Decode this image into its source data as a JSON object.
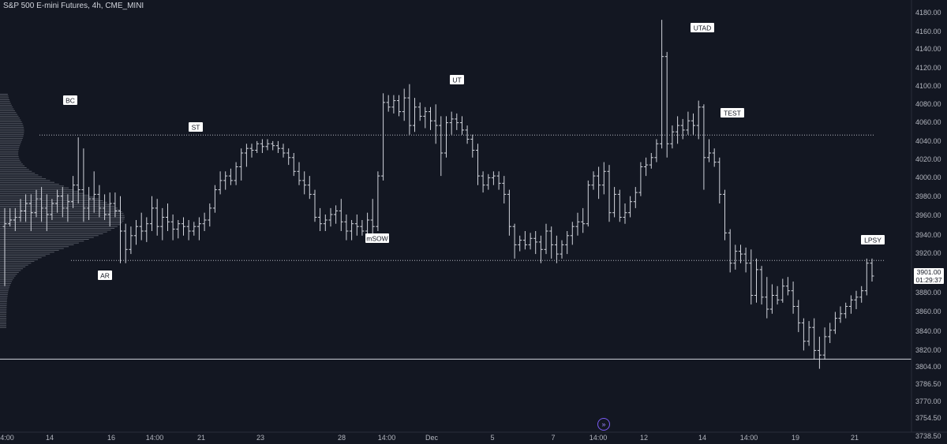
{
  "header": {
    "title": "S&P 500 E-mini Futures, 4h, CME_MINI"
  },
  "last_price": {
    "value": "3901.00",
    "countdown": "01:29:37"
  },
  "colors": {
    "background": "#131722",
    "bars": "#d1d4dc",
    "axis_text": "#b2b5be",
    "lines": "#d1d4dc",
    "profile": "#8d929c",
    "label_bg": "#ffffff",
    "label_text": "#131722",
    "accent": "#7b5cf5"
  },
  "icons": {
    "nav": "double-chevron-right-icon"
  },
  "chart_data": {
    "type": "ohlc",
    "title": "S&P 500 E-mini Futures, 4h, CME_MINI",
    "y_ticks": [
      "4180.00",
      "4160.00",
      "4140.00",
      "4120.00",
      "4100.00",
      "4080.00",
      "4060.00",
      "4040.00",
      "4020.00",
      "4000.00",
      "3980.00",
      "3960.00",
      "3940.00",
      "3920.00",
      "3880.00",
      "3860.00",
      "3840.00",
      "3820.00",
      "3804.00",
      "3786.50",
      "3770.00",
      "3754.50",
      "3738.50"
    ],
    "x_ticks": [
      "4:00",
      "14",
      "16",
      "14:00",
      "21",
      "23",
      "28",
      "14:00",
      "Dec",
      "5",
      "7",
      "14:00",
      "12",
      "14",
      "14:00",
      "19",
      "21"
    ],
    "ylim": [
      3731,
      4193
    ],
    "horizontal_levels": [
      {
        "value": 4054.5,
        "style": "dotted"
      },
      {
        "value": 3918,
        "style": "dotted"
      },
      {
        "value": 3810.5,
        "style": "solid"
      }
    ],
    "annotations": [
      {
        "text": "BC",
        "near": 4085
      },
      {
        "text": "ST",
        "near": 4054.5
      },
      {
        "text": "AR",
        "near": 3894
      },
      {
        "text": "UT",
        "near": 4106
      },
      {
        "text": "mSOW",
        "near": 3937
      },
      {
        "text": "UTAD",
        "near": 4168
      },
      {
        "text": "TEST",
        "near": 4067
      },
      {
        "text": "LPSY",
        "near": 3937
      }
    ],
    "bars": [
      {
        "o": 3955,
        "h": 3975,
        "l": 3890,
        "c": 3958
      },
      {
        "o": 3958,
        "h": 3975,
        "l": 3955,
        "c": 3962
      },
      {
        "o": 3962,
        "h": 3975,
        "l": 3950,
        "c": 3965
      },
      {
        "o": 3965,
        "h": 3985,
        "l": 3960,
        "c": 3972
      },
      {
        "o": 3972,
        "h": 3990,
        "l": 3960,
        "c": 3980
      },
      {
        "o": 3980,
        "h": 3990,
        "l": 3950,
        "c": 3970
      },
      {
        "o": 3970,
        "h": 3995,
        "l": 3965,
        "c": 3985
      },
      {
        "o": 3985,
        "h": 3998,
        "l": 3960,
        "c": 3975
      },
      {
        "o": 3975,
        "h": 3990,
        "l": 3950,
        "c": 3968
      },
      {
        "o": 3968,
        "h": 3985,
        "l": 3962,
        "c": 3980
      },
      {
        "o": 3980,
        "h": 3995,
        "l": 3970,
        "c": 3988
      },
      {
        "o": 3988,
        "h": 3998,
        "l": 3965,
        "c": 3975
      },
      {
        "o": 3975,
        "h": 3990,
        "l": 3960,
        "c": 3982
      },
      {
        "o": 3982,
        "h": 4010,
        "l": 3975,
        "c": 4000
      },
      {
        "o": 4000,
        "h": 4052,
        "l": 3980,
        "c": 3995
      },
      {
        "o": 3995,
        "h": 4040,
        "l": 3960,
        "c": 3975
      },
      {
        "o": 3975,
        "h": 3998,
        "l": 3962,
        "c": 3985
      },
      {
        "o": 3985,
        "h": 4015,
        "l": 3970,
        "c": 3990
      },
      {
        "o": 3990,
        "h": 4000,
        "l": 3965,
        "c": 3975
      },
      {
        "o": 3975,
        "h": 3990,
        "l": 3962,
        "c": 3968
      },
      {
        "o": 3968,
        "h": 3992,
        "l": 3955,
        "c": 3980
      },
      {
        "o": 3980,
        "h": 3992,
        "l": 3965,
        "c": 3972
      },
      {
        "o": 3972,
        "h": 3988,
        "l": 3915,
        "c": 3950
      },
      {
        "o": 3950,
        "h": 3958,
        "l": 3915,
        "c": 3930
      },
      {
        "o": 3930,
        "h": 3955,
        "l": 3925,
        "c": 3945
      },
      {
        "o": 3945,
        "h": 3962,
        "l": 3935,
        "c": 3955
      },
      {
        "o": 3955,
        "h": 3970,
        "l": 3940,
        "c": 3950
      },
      {
        "o": 3950,
        "h": 3965,
        "l": 3938,
        "c": 3958
      },
      {
        "o": 3958,
        "h": 3988,
        "l": 3950,
        "c": 3975
      },
      {
        "o": 3975,
        "h": 3985,
        "l": 3945,
        "c": 3955
      },
      {
        "o": 3955,
        "h": 3975,
        "l": 3940,
        "c": 3965
      },
      {
        "o": 3965,
        "h": 3980,
        "l": 3950,
        "c": 3960
      },
      {
        "o": 3960,
        "h": 3968,
        "l": 3940,
        "c": 3952
      },
      {
        "o": 3952,
        "h": 3962,
        "l": 3942,
        "c": 3958
      },
      {
        "o": 3958,
        "h": 3965,
        "l": 3945,
        "c": 3955
      },
      {
        "o": 3955,
        "h": 3962,
        "l": 3940,
        "c": 3950
      },
      {
        "o": 3950,
        "h": 3960,
        "l": 3945,
        "c": 3955
      },
      {
        "o": 3955,
        "h": 3965,
        "l": 3940,
        "c": 3958
      },
      {
        "o": 3958,
        "h": 3970,
        "l": 3950,
        "c": 3962
      },
      {
        "o": 3962,
        "h": 3980,
        "l": 3955,
        "c": 3975
      },
      {
        "o": 3975,
        "h": 4000,
        "l": 3970,
        "c": 3995
      },
      {
        "o": 3995,
        "h": 4015,
        "l": 3990,
        "c": 4005
      },
      {
        "o": 4005,
        "h": 4015,
        "l": 3995,
        "c": 4010
      },
      {
        "o": 4010,
        "h": 4018,
        "l": 4000,
        "c": 4005
      },
      {
        "o": 4005,
        "h": 4025,
        "l": 4000,
        "c": 4020
      },
      {
        "o": 4020,
        "h": 4040,
        "l": 4005,
        "c": 4035
      },
      {
        "o": 4035,
        "h": 4045,
        "l": 4020,
        "c": 4040
      },
      {
        "o": 4040,
        "h": 4045,
        "l": 4030,
        "c": 4038
      },
      {
        "o": 4038,
        "h": 4048,
        "l": 4035,
        "c": 4045
      },
      {
        "o": 4045,
        "h": 4050,
        "l": 4035,
        "c": 4042
      },
      {
        "o": 4042,
        "h": 4050,
        "l": 4038,
        "c": 4045
      },
      {
        "o": 4045,
        "h": 4048,
        "l": 4038,
        "c": 4043
      },
      {
        "o": 4043,
        "h": 4048,
        "l": 4035,
        "c": 4040
      },
      {
        "o": 4040,
        "h": 4045,
        "l": 4030,
        "c": 4035
      },
      {
        "o": 4035,
        "h": 4040,
        "l": 4022,
        "c": 4030
      },
      {
        "o": 4030,
        "h": 4035,
        "l": 4010,
        "c": 4015
      },
      {
        "o": 4015,
        "h": 4025,
        "l": 4000,
        "c": 4005
      },
      {
        "o": 4005,
        "h": 4015,
        "l": 3990,
        "c": 4000
      },
      {
        "o": 4000,
        "h": 4010,
        "l": 3985,
        "c": 3990
      },
      {
        "o": 3990,
        "h": 3995,
        "l": 3960,
        "c": 3965
      },
      {
        "o": 3965,
        "h": 3975,
        "l": 3950,
        "c": 3958
      },
      {
        "o": 3958,
        "h": 3968,
        "l": 3950,
        "c": 3962
      },
      {
        "o": 3962,
        "h": 3975,
        "l": 3955,
        "c": 3968
      },
      {
        "o": 3968,
        "h": 3978,
        "l": 3958,
        "c": 3972
      },
      {
        "o": 3972,
        "h": 3985,
        "l": 3950,
        "c": 3960
      },
      {
        "o": 3960,
        "h": 3968,
        "l": 3940,
        "c": 3950
      },
      {
        "o": 3950,
        "h": 3962,
        "l": 3940,
        "c": 3958
      },
      {
        "o": 3958,
        "h": 3968,
        "l": 3945,
        "c": 3955
      },
      {
        "o": 3955,
        "h": 3962,
        "l": 3945,
        "c": 3950
      },
      {
        "o": 3950,
        "h": 3970,
        "l": 3945,
        "c": 3962
      },
      {
        "o": 3962,
        "h": 3985,
        "l": 3940,
        "c": 3955
      },
      {
        "o": 3955,
        "h": 4015,
        "l": 3950,
        "c": 4010
      },
      {
        "o": 4010,
        "h": 4100,
        "l": 4005,
        "c": 4090
      },
      {
        "o": 4090,
        "h": 4098,
        "l": 4080,
        "c": 4085
      },
      {
        "o": 4085,
        "h": 4098,
        "l": 4078,
        "c": 4092
      },
      {
        "o": 4092,
        "h": 4098,
        "l": 4075,
        "c": 4080
      },
      {
        "o": 4080,
        "h": 4105,
        "l": 4070,
        "c": 4095
      },
      {
        "o": 4095,
        "h": 4110,
        "l": 4055,
        "c": 4065
      },
      {
        "o": 4065,
        "h": 4095,
        "l": 4058,
        "c": 4085
      },
      {
        "o": 4085,
        "h": 4090,
        "l": 4070,
        "c": 4075
      },
      {
        "o": 4075,
        "h": 4085,
        "l": 4062,
        "c": 4080
      },
      {
        "o": 4080,
        "h": 4085,
        "l": 4060,
        "c": 4070
      },
      {
        "o": 4070,
        "h": 4088,
        "l": 4045,
        "c": 4065
      },
      {
        "o": 4065,
        "h": 4075,
        "l": 4010,
        "c": 4035
      },
      {
        "o": 4035,
        "h": 4075,
        "l": 4030,
        "c": 4068
      },
      {
        "o": 4068,
        "h": 4080,
        "l": 4055,
        "c": 4072
      },
      {
        "o": 4072,
        "h": 4078,
        "l": 4060,
        "c": 4068
      },
      {
        "o": 4068,
        "h": 4075,
        "l": 4055,
        "c": 4060
      },
      {
        "o": 4060,
        "h": 4065,
        "l": 4045,
        "c": 4050
      },
      {
        "o": 4050,
        "h": 4055,
        "l": 4030,
        "c": 4038
      },
      {
        "o": 4038,
        "h": 4045,
        "l": 4000,
        "c": 4010
      },
      {
        "o": 4010,
        "h": 4015,
        "l": 3992,
        "c": 4000
      },
      {
        "o": 4000,
        "h": 4012,
        "l": 3995,
        "c": 4008
      },
      {
        "o": 4008,
        "h": 4015,
        "l": 4000,
        "c": 4010
      },
      {
        "o": 4010,
        "h": 4015,
        "l": 3995,
        "c": 4002
      },
      {
        "o": 4002,
        "h": 4010,
        "l": 3980,
        "c": 3990
      },
      {
        "o": 3990,
        "h": 3995,
        "l": 3945,
        "c": 3955
      },
      {
        "o": 3955,
        "h": 3958,
        "l": 3920,
        "c": 3935
      },
      {
        "o": 3935,
        "h": 3945,
        "l": 3928,
        "c": 3940
      },
      {
        "o": 3940,
        "h": 3950,
        "l": 3930,
        "c": 3935
      },
      {
        "o": 3935,
        "h": 3948,
        "l": 3930,
        "c": 3942
      },
      {
        "o": 3942,
        "h": 3950,
        "l": 3925,
        "c": 3938
      },
      {
        "o": 3938,
        "h": 3945,
        "l": 3915,
        "c": 3930
      },
      {
        "o": 3930,
        "h": 3958,
        "l": 3925,
        "c": 3950
      },
      {
        "o": 3950,
        "h": 3955,
        "l": 3920,
        "c": 3935
      },
      {
        "o": 3935,
        "h": 3945,
        "l": 3915,
        "c": 3925
      },
      {
        "o": 3925,
        "h": 3940,
        "l": 3920,
        "c": 3935
      },
      {
        "o": 3935,
        "h": 3950,
        "l": 3925,
        "c": 3945
      },
      {
        "o": 3945,
        "h": 3960,
        "l": 3935,
        "c": 3955
      },
      {
        "o": 3955,
        "h": 3970,
        "l": 3945,
        "c": 3960
      },
      {
        "o": 3960,
        "h": 3975,
        "l": 3948,
        "c": 3958
      },
      {
        "o": 3958,
        "h": 4005,
        "l": 3955,
        "c": 4000
      },
      {
        "o": 4000,
        "h": 4015,
        "l": 3995,
        "c": 4010
      },
      {
        "o": 4010,
        "h": 4020,
        "l": 3985,
        "c": 4000
      },
      {
        "o": 4000,
        "h": 4025,
        "l": 3990,
        "c": 4015
      },
      {
        "o": 4015,
        "h": 4022,
        "l": 3960,
        "c": 3970
      },
      {
        "o": 3970,
        "h": 3998,
        "l": 3965,
        "c": 3990
      },
      {
        "o": 3990,
        "h": 3995,
        "l": 3960,
        "c": 3965
      },
      {
        "o": 3965,
        "h": 3980,
        "l": 3958,
        "c": 3970
      },
      {
        "o": 3970,
        "h": 3988,
        "l": 3965,
        "c": 3982
      },
      {
        "o": 3982,
        "h": 3998,
        "l": 3975,
        "c": 3992
      },
      {
        "o": 3992,
        "h": 4025,
        "l": 3988,
        "c": 4020
      },
      {
        "o": 4020,
        "h": 4030,
        "l": 4010,
        "c": 4022
      },
      {
        "o": 4022,
        "h": 4035,
        "l": 4018,
        "c": 4030
      },
      {
        "o": 4030,
        "h": 4050,
        "l": 4025,
        "c": 4045
      },
      {
        "o": 4045,
        "h": 4180,
        "l": 4040,
        "c": 4140
      },
      {
        "o": 4140,
        "h": 4145,
        "l": 4030,
        "c": 4045
      },
      {
        "o": 4045,
        "h": 4065,
        "l": 4040,
        "c": 4058
      },
      {
        "o": 4058,
        "h": 4075,
        "l": 4045,
        "c": 4065
      },
      {
        "o": 4065,
        "h": 4072,
        "l": 4050,
        "c": 4060
      },
      {
        "o": 4060,
        "h": 4080,
        "l": 4055,
        "c": 4070
      },
      {
        "o": 4070,
        "h": 4078,
        "l": 4055,
        "c": 4065
      },
      {
        "o": 4065,
        "h": 4092,
        "l": 4050,
        "c": 4085
      },
      {
        "o": 4085,
        "h": 4088,
        "l": 3995,
        "c": 4030
      },
      {
        "o": 4030,
        "h": 4050,
        "l": 4025,
        "c": 4035
      },
      {
        "o": 4035,
        "h": 4040,
        "l": 4020,
        "c": 4025
      },
      {
        "o": 4025,
        "h": 4030,
        "l": 3980,
        "c": 3990
      },
      {
        "o": 3990,
        "h": 3995,
        "l": 3940,
        "c": 3948
      },
      {
        "o": 3948,
        "h": 3952,
        "l": 3905,
        "c": 3915
      },
      {
        "o": 3915,
        "h": 3935,
        "l": 3908,
        "c": 3928
      },
      {
        "o": 3928,
        "h": 3935,
        "l": 3915,
        "c": 3925
      },
      {
        "o": 3925,
        "h": 3932,
        "l": 3905,
        "c": 3915
      },
      {
        "o": 3915,
        "h": 3930,
        "l": 3870,
        "c": 3880
      },
      {
        "o": 3880,
        "h": 3920,
        "l": 3872,
        "c": 3908
      },
      {
        "o": 3908,
        "h": 3912,
        "l": 3870,
        "c": 3878
      },
      {
        "o": 3878,
        "h": 3900,
        "l": 3855,
        "c": 3865
      },
      {
        "o": 3865,
        "h": 3892,
        "l": 3860,
        "c": 3880
      },
      {
        "o": 3880,
        "h": 3890,
        "l": 3870,
        "c": 3875
      },
      {
        "o": 3875,
        "h": 3898,
        "l": 3872,
        "c": 3890
      },
      {
        "o": 3890,
        "h": 3900,
        "l": 3880,
        "c": 3885
      },
      {
        "o": 3885,
        "h": 3895,
        "l": 3860,
        "c": 3868
      },
      {
        "o": 3868,
        "h": 3875,
        "l": 3840,
        "c": 3850
      },
      {
        "o": 3850,
        "h": 3855,
        "l": 3820,
        "c": 3830
      },
      {
        "o": 3830,
        "h": 3852,
        "l": 3825,
        "c": 3845
      },
      {
        "o": 3845,
        "h": 3855,
        "l": 3810,
        "c": 3820
      },
      {
        "o": 3820,
        "h": 3835,
        "l": 3800,
        "c": 3815
      },
      {
        "o": 3815,
        "h": 3845,
        "l": 3810,
        "c": 3835
      },
      {
        "o": 3835,
        "h": 3850,
        "l": 3828,
        "c": 3842
      },
      {
        "o": 3842,
        "h": 3862,
        "l": 3838,
        "c": 3855
      },
      {
        "o": 3855,
        "h": 3868,
        "l": 3850,
        "c": 3860
      },
      {
        "o": 3860,
        "h": 3872,
        "l": 3855,
        "c": 3868
      },
      {
        "o": 3868,
        "h": 3880,
        "l": 3860,
        "c": 3875
      },
      {
        "o": 3875,
        "h": 3885,
        "l": 3865,
        "c": 3878
      },
      {
        "o": 3878,
        "h": 3890,
        "l": 3872,
        "c": 3885
      },
      {
        "o": 3885,
        "h": 3920,
        "l": 3880,
        "c": 3915
      },
      {
        "o": 3915,
        "h": 3920,
        "l": 3895,
        "c": 3901
      }
    ]
  }
}
